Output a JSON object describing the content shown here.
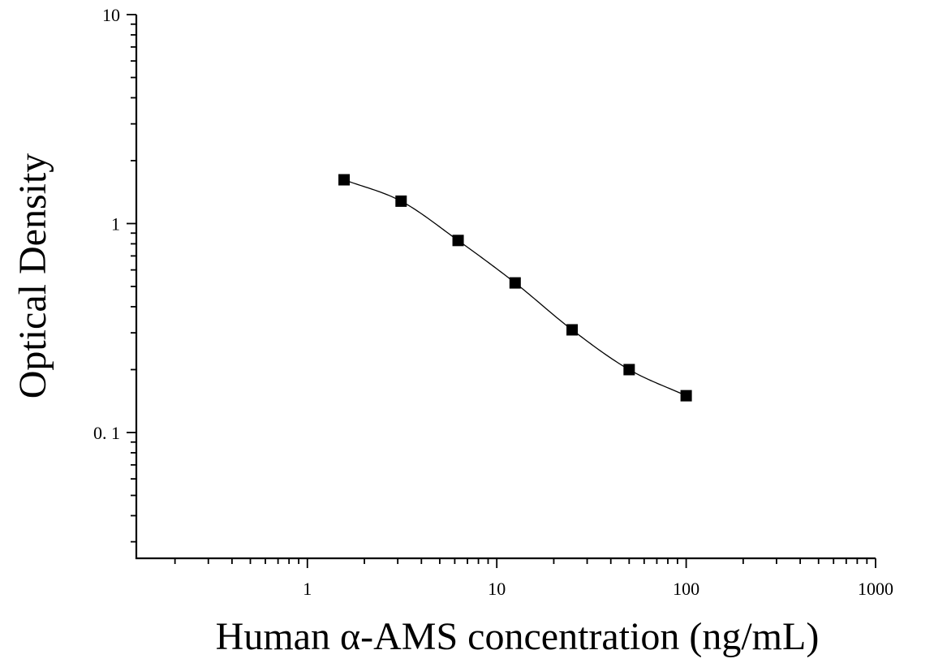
{
  "chart_data": {
    "type": "scatter",
    "title": "",
    "xlabel": "Human α-AMS concentration (ng/mL)",
    "ylabel": "Optical Density",
    "x_scale": "log",
    "y_scale": "log",
    "xlim": [
      0.125,
      1000
    ],
    "ylim": [
      0.025,
      10
    ],
    "x_ticks": [
      1,
      10,
      100,
      1000
    ],
    "x_tick_labels": [
      "1",
      "10",
      "100",
      "1000"
    ],
    "y_ticks": [
      0.1,
      1,
      10
    ],
    "y_tick_labels": [
      "0. 1",
      "1",
      "10"
    ],
    "grid": false,
    "legend": "none",
    "series": [
      {
        "x": [
          1.5625,
          3.125,
          6.25,
          12.5,
          25,
          50,
          100
        ],
        "y": [
          1.62,
          1.28,
          0.83,
          0.52,
          0.31,
          0.2,
          0.15
        ],
        "marker": "square",
        "fit": "four-parameter-logistic"
      }
    ],
    "color": "#000000"
  }
}
